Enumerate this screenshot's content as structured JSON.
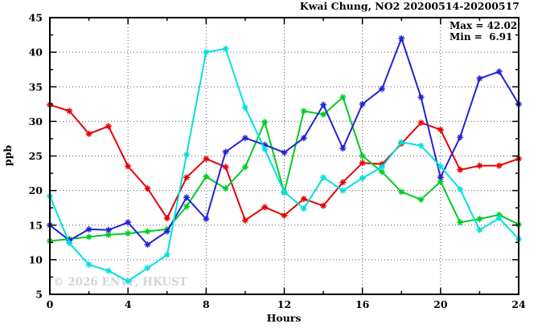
{
  "chart_data": {
    "type": "line",
    "title": "Kwai Chung, NO2 20200514-20200517",
    "annotations": {
      "max_label": "Max = 42.02",
      "min_label": "Min =  6.91"
    },
    "xlabel": "Hours",
    "ylabel": "ppb",
    "watermark": "© 2026 ENVF, HKUST",
    "xlim": [
      0,
      24
    ],
    "ylim": [
      5,
      45
    ],
    "x_major_ticks": [
      0,
      4,
      8,
      12,
      16,
      20,
      24
    ],
    "x_minor_ticks": [
      2,
      6,
      10,
      14,
      18,
      22
    ],
    "y_major_ticks": [
      5,
      10,
      15,
      20,
      25,
      30,
      35,
      40,
      45
    ],
    "y_minor_ticks": [
      7.5,
      12.5,
      17.5,
      22.5,
      27.5,
      32.5,
      37.5,
      42.5
    ],
    "x_gridlines": [
      4,
      8,
      12,
      16,
      20
    ],
    "y_gridlines": [
      10,
      15,
      20,
      25,
      30,
      35,
      40
    ],
    "grid": true,
    "legend": "none",
    "x": [
      0,
      1,
      2,
      3,
      4,
      5,
      6,
      7,
      8,
      9,
      10,
      11,
      12,
      13,
      14,
      15,
      16,
      17,
      18,
      19,
      20,
      21,
      22,
      23,
      24
    ],
    "series": [
      {
        "name": "series-red",
        "color": "#e60000",
        "values": [
          32.4,
          31.5,
          28.2,
          29.3,
          23.5,
          20.3,
          16.0,
          21.9,
          24.6,
          23.4,
          15.7,
          17.6,
          16.4,
          18.8,
          17.8,
          21.2,
          24.0,
          23.8,
          26.8,
          29.8,
          28.8,
          23.0,
          23.6,
          23.6,
          24.6
        ]
      },
      {
        "name": "series-green",
        "color": "#00cc22",
        "values": [
          12.7,
          13.0,
          13.3,
          13.6,
          13.8,
          14.1,
          14.4,
          17.7,
          22.0,
          20.3,
          23.4,
          29.9,
          19.7,
          31.5,
          31.0,
          33.5,
          25.0,
          22.7,
          19.8,
          18.7,
          21.3,
          15.4,
          15.9,
          16.5,
          15.1
        ]
      },
      {
        "name": "series-blue",
        "color": "#2222d5",
        "values": [
          15.0,
          12.8,
          14.4,
          14.3,
          15.4,
          12.2,
          14.1,
          19.0,
          15.9,
          25.6,
          27.6,
          26.6,
          25.5,
          27.6,
          32.4,
          26.1,
          32.5,
          34.7,
          42.0,
          33.5,
          21.9,
          27.7,
          36.2,
          37.2,
          32.5
        ]
      },
      {
        "name": "series-cyan",
        "color": "#00e0e0",
        "values": [
          19.2,
          12.4,
          9.3,
          8.4,
          6.9,
          8.8,
          10.7,
          25.2,
          40.0,
          40.5,
          32.0,
          26.0,
          19.8,
          17.4,
          21.9,
          20.0,
          21.8,
          23.4,
          27.0,
          26.5,
          23.5,
          20.2,
          14.3,
          16.0,
          13.0
        ]
      }
    ]
  }
}
